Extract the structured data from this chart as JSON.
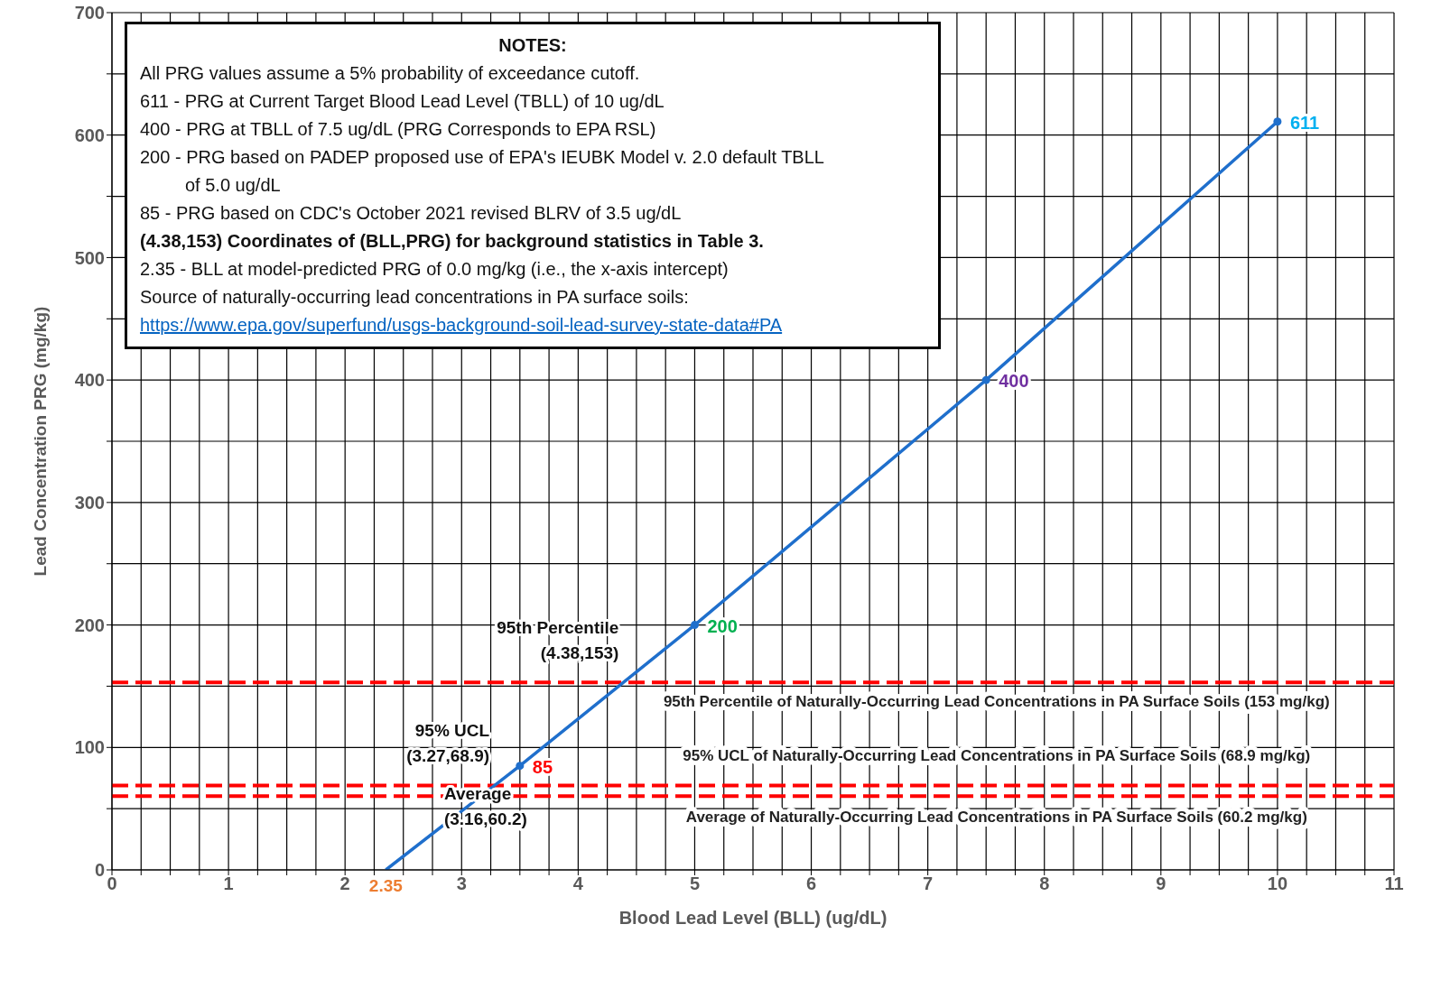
{
  "chart_data": {
    "type": "line",
    "xlabel": "Blood Lead Level (BLL) (ug/dL)",
    "ylabel": "Lead Concentration PRG (mg/kg)",
    "xlim": [
      0,
      11
    ],
    "ylim": [
      0,
      700
    ],
    "xticks": [
      0,
      {
        "value": 0.25,
        "label": null
      },
      {
        "value": 0.5,
        "label": null
      },
      {
        "value": 0.75,
        "label": null
      },
      1,
      {
        "value": 1.25,
        "label": null
      },
      {
        "value": 1.5,
        "label": null
      },
      {
        "value": 1.75,
        "label": null
      },
      2,
      {
        "value": 2.25,
        "label": null
      },
      {
        "value": 2.5,
        "label": null
      },
      {
        "value": 2.75,
        "label": null
      },
      3,
      {
        "value": 3.25,
        "label": null
      },
      {
        "value": 3.5,
        "label": null
      },
      {
        "value": 3.75,
        "label": null
      },
      4,
      {
        "value": 4.25,
        "label": null
      },
      {
        "value": 4.5,
        "label": null
      },
      {
        "value": 4.75,
        "label": null
      },
      5,
      {
        "value": 5.25,
        "label": null
      },
      {
        "value": 5.5,
        "label": null
      },
      {
        "value": 5.75,
        "label": null
      },
      6,
      {
        "value": 6.25,
        "label": null
      },
      {
        "value": 6.5,
        "label": null
      },
      {
        "value": 6.75,
        "label": null
      },
      7,
      {
        "value": 7.25,
        "label": null
      },
      {
        "value": 7.5,
        "label": null
      },
      {
        "value": 7.75,
        "label": null
      },
      8,
      {
        "value": 8.25,
        "label": null
      },
      {
        "value": 8.5,
        "label": null
      },
      {
        "value": 8.75,
        "label": null
      },
      9,
      {
        "value": 9.25,
        "label": null
      },
      {
        "value": 9.5,
        "label": null
      },
      {
        "value": 9.75,
        "label": null
      },
      10,
      {
        "value": 10.25,
        "label": null
      },
      {
        "value": 10.5,
        "label": null
      },
      {
        "value": 10.75,
        "label": null
      },
      11
    ],
    "yticks": [
      0,
      {
        "value": 50,
        "label": null
      },
      100,
      {
        "value": 150,
        "label": null
      },
      200,
      {
        "value": 250,
        "label": null
      },
      300,
      {
        "value": 350,
        "label": null
      },
      400,
      {
        "value": 450,
        "label": null
      },
      500,
      {
        "value": 550,
        "label": null
      },
      600,
      {
        "value": 650,
        "label": null
      },
      700
    ],
    "grid": true,
    "series": [
      {
        "type": "line",
        "color": "#1f6fcc",
        "x": [
          2.35,
          3.5,
          5,
          7.5,
          10
        ],
        "values": [
          0,
          85,
          200,
          400,
          611
        ],
        "marker": "none",
        "line_style": "solid"
      },
      {
        "type": "scatter",
        "color": "#1f6fcc",
        "x": [
          3.5,
          5,
          7.5,
          10
        ],
        "values": [
          85,
          200,
          400,
          611
        ],
        "marker": "circle",
        "value_labels": [
          "85",
          "200",
          "400",
          "611"
        ]
      }
    ],
    "ref_lines": [
      {
        "axis": "y",
        "value": 153,
        "label": "95th Percentile of Naturally-Occurring Lead Concentrations in PA Surface Soils (153 mg/kg)",
        "color": "#ff0000",
        "line_style": "dashed"
      },
      {
        "axis": "y",
        "value": 68.9,
        "label": "95% UCL of Naturally-Occurring Lead Concentrations in PA Surface Soils (68.9 mg/kg)",
        "color": "#ff0000",
        "line_style": "dashed"
      },
      {
        "axis": "y",
        "value": 60.2,
        "label": "Average of Naturally-Occurring Lead Concentrations in PA Surface Soils (60.2 mg/kg)",
        "color": "#ff0000",
        "line_style": "dashed"
      }
    ],
    "annotations": [
      {
        "text": "95th Percentile (4.38,153)",
        "x": 4.38,
        "y": 153
      },
      {
        "text": "95% UCL (3.27,68.9)",
        "x": 3.27,
        "y": 68.9
      },
      {
        "text": "Average (3.16,60.2)",
        "x": 3.16,
        "y": 60.2
      },
      {
        "text": "2.35",
        "x": 2.35,
        "y": 0
      },
      "NOTES:",
      "All PRG values assume a 5% probability of exceedance cutoff.",
      "611 - PRG at Current Target Blood Lead Level (TBLL) of 10 ug/dL",
      "400 - PRG at TBLL of 7.5 ug/dL (PRG Corresponds to EPA RSL)",
      "200 - PRG based on PADEP proposed use of EPA's IEUBK Model v. 2.0 default TBLL",
      "of 5.0 ug/dL",
      "85 - PRG based on CDC's October 2021 revised BLRV of 3.5 ug/dL",
      "(4.38,153) Coordinates of (BLL,PRG) for background statistics in Table 3.",
      "2.35 - BLL at model-predicted PRG of 0.0 mg/kg (i.e., the x-axis intercept)",
      "Source of naturally-occurring lead concentrations in PA surface soils:",
      "https://www.epa.gov/superfund/usgs-background-soil-lead-survey-state-data#PA"
    ]
  }
}
